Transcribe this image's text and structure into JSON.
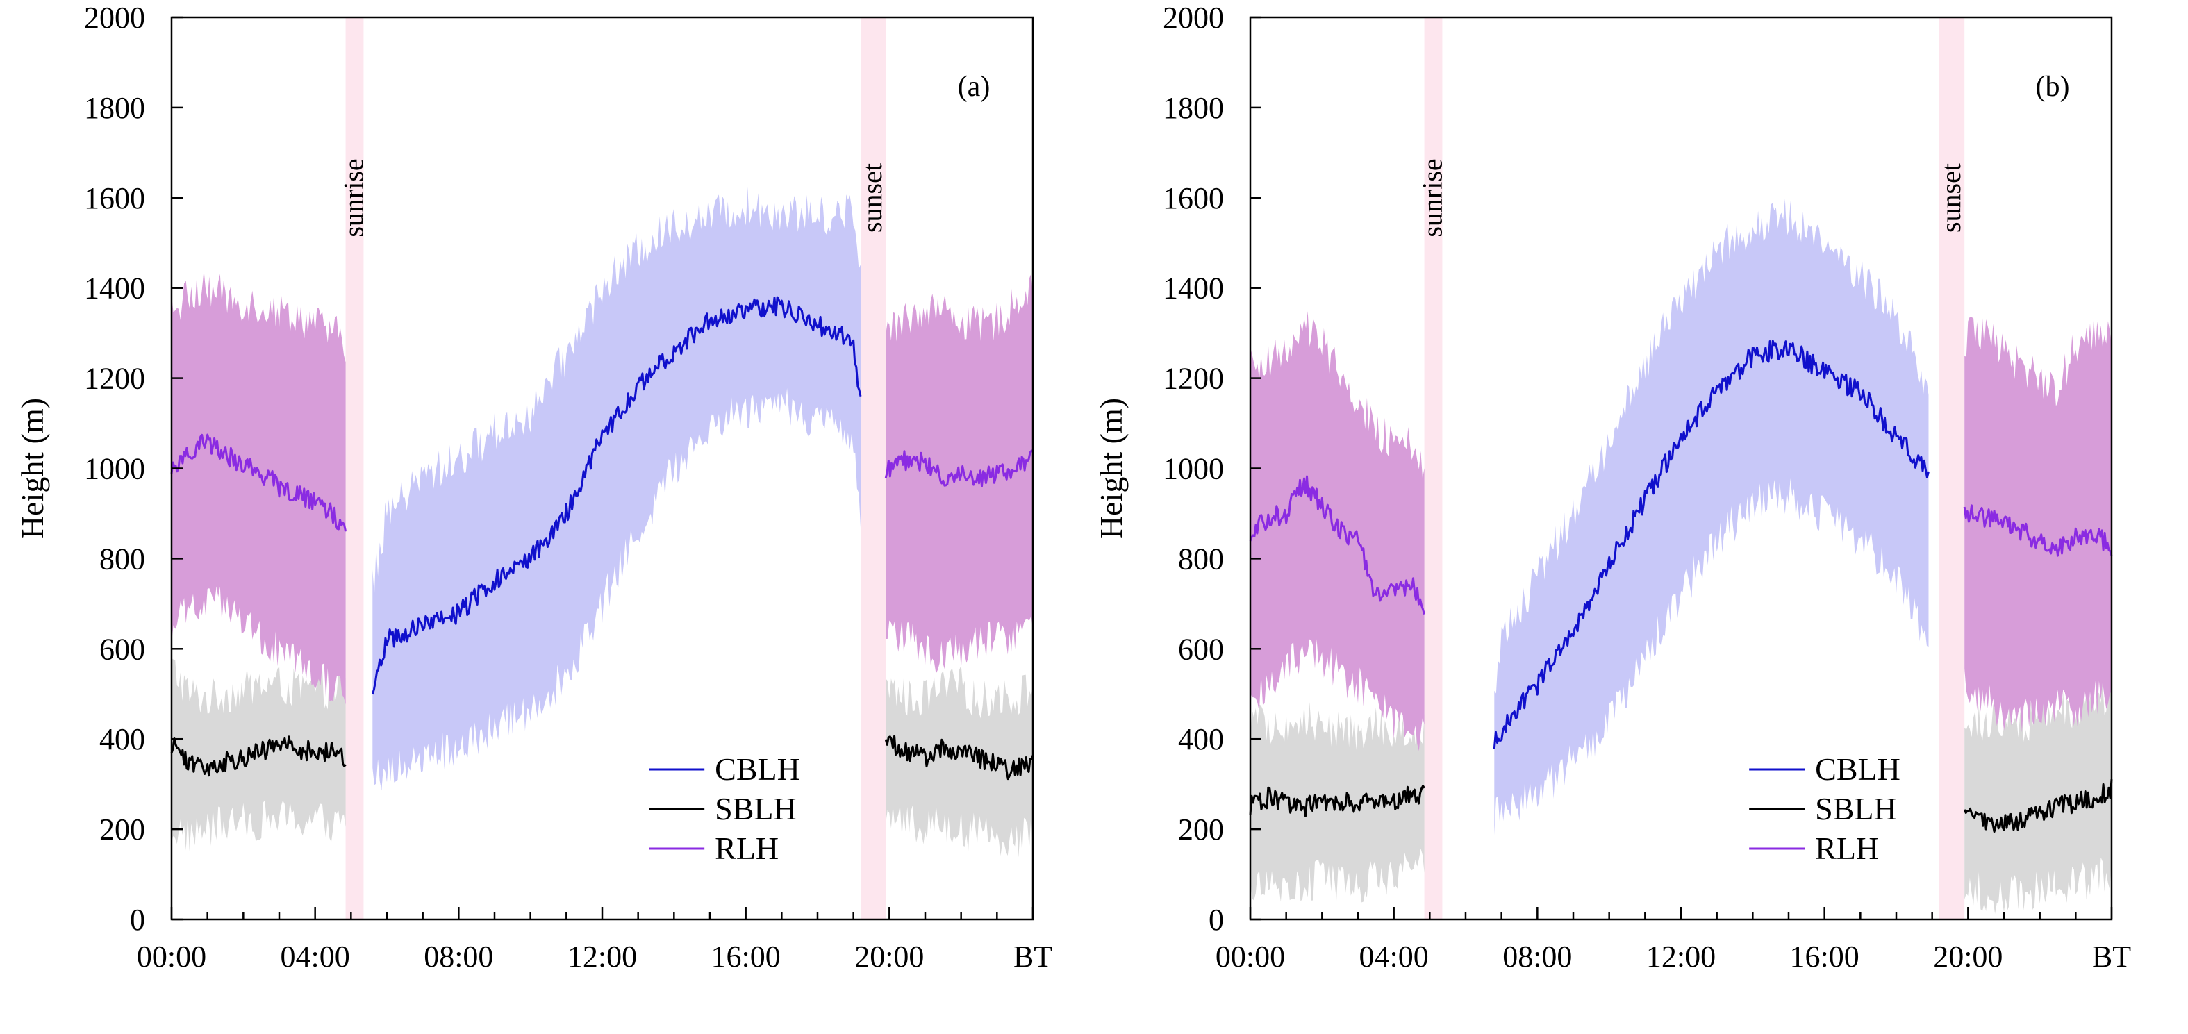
{
  "chart_data": [
    {
      "type": "line",
      "panel_label": "(a)",
      "ylabel": "Height (m)",
      "ylim": [
        0,
        2000
      ],
      "yticks": [
        "0",
        "200",
        "400",
        "600",
        "800",
        "1000",
        "1200",
        "1400",
        "1600",
        "1800",
        "2000"
      ],
      "xlim_hours": [
        0,
        24
      ],
      "xtick_labels": [
        "00:00",
        "04:00",
        "08:00",
        "12:00",
        "16:00",
        "20:00",
        "BT"
      ],
      "sunrise_band_hours": [
        4.85,
        5.35
      ],
      "sunset_band_hours": [
        19.2,
        19.9
      ],
      "sunrise_label": "sunrise",
      "sunset_label": "sunset",
      "legend": [
        "CBLH",
        "SBLH",
        "RLH"
      ],
      "colors": {
        "CBLH": "#1010cc",
        "SBLH": "#000000",
        "RLH": "#8a2be2",
        "CBLH_band": "#c8c8f8",
        "SBLH_band": "#d9d9d9",
        "RLH_band": "#d79dd9",
        "event_band": "#fde6ee"
      },
      "series": [
        {
          "name": "CBLH",
          "hours": [
            5.6,
            6,
            7,
            8,
            9,
            10,
            11,
            12,
            13,
            14,
            15,
            16,
            17,
            18,
            19,
            19.2
          ],
          "values": [
            520,
            620,
            650,
            680,
            750,
            800,
            900,
            1070,
            1180,
            1260,
            1330,
            1350,
            1360,
            1320,
            1280,
            1150
          ],
          "upper": [
            740,
            900,
            980,
            1020,
            1080,
            1120,
            1250,
            1400,
            1480,
            1540,
            1560,
            1580,
            1570,
            1560,
            1570,
            1450
          ],
          "lower": [
            300,
            330,
            360,
            380,
            420,
            470,
            540,
            700,
            860,
            1000,
            1100,
            1130,
            1150,
            1100,
            1080,
            850
          ]
        },
        {
          "name": "SBLH",
          "segments": [
            {
              "hours": [
                0,
                0.5,
                1,
                1.5,
                2,
                2.5,
                3,
                3.5,
                4,
                4.5,
                4.85
              ],
              "values": [
                390,
                350,
                340,
                350,
                360,
                370,
                390,
                380,
                370,
                370,
                360
              ],
              "upper": [
                560,
                500,
                490,
                500,
                510,
                520,
                520,
                510,
                510,
                510,
                510
              ],
              "lower": [
                200,
                190,
                200,
                210,
                215,
                220,
                225,
                220,
                220,
                210,
                210
              ]
            },
            {
              "hours": [
                19.9,
                20.5,
                21,
                21.5,
                22,
                22.5,
                23,
                23.5,
                24
              ],
              "values": [
                400,
                370,
                360,
                380,
                370,
                360,
                340,
                330,
                350
              ],
              "upper": [
                520,
                490,
                490,
                510,
                520,
                480,
                500,
                490,
                520
              ],
              "lower": [
                230,
                220,
                210,
                220,
                200,
                190,
                185,
                180,
                190
              ]
            }
          ]
        },
        {
          "name": "RLH",
          "segments": [
            {
              "hours": [
                0,
                0.5,
                1,
                1.5,
                2,
                2.5,
                3,
                3.5,
                4,
                4.5,
                4.85
              ],
              "values": [
                1000,
                1040,
                1060,
                1030,
                1010,
                990,
                960,
                940,
                930,
                900,
                850
              ],
              "upper": [
                1350,
                1380,
                1400,
                1380,
                1370,
                1360,
                1350,
                1340,
                1320,
                1300,
                1280
              ],
              "lower": [
                650,
                680,
                700,
                690,
                660,
                620,
                590,
                560,
                540,
                520,
                490
              ]
            },
            {
              "hours": [
                19.9,
                20.5,
                21,
                21.5,
                22,
                22.5,
                23,
                23.5,
                24
              ],
              "values": [
                1000,
                1020,
                1010,
                980,
                990,
                980,
                990,
                1000,
                1020
              ],
              "upper": [
                1300,
                1330,
                1360,
                1350,
                1330,
                1310,
                1330,
                1360,
                1420
              ],
              "lower": [
                650,
                620,
                600,
                580,
                600,
                610,
                620,
                640,
                650
              ]
            }
          ]
        }
      ]
    },
    {
      "type": "line",
      "panel_label": "(b)",
      "ylabel": "Height (m)",
      "ylim": [
        0,
        2000
      ],
      "yticks": [
        "0",
        "200",
        "400",
        "600",
        "800",
        "1000",
        "1200",
        "1400",
        "1600",
        "1800",
        "2000"
      ],
      "xlim_hours": [
        0,
        24
      ],
      "xtick_labels": [
        "00:00",
        "04:00",
        "08:00",
        "12:00",
        "16:00",
        "20:00",
        "BT"
      ],
      "sunrise_band_hours": [
        4.85,
        5.35
      ],
      "sunset_band_hours": [
        19.2,
        19.9
      ],
      "sunrise_label": "sunrise",
      "sunset_label": "sunset",
      "legend": [
        "CBLH",
        "SBLH",
        "RLH"
      ],
      "colors": {
        "CBLH": "#1010cc",
        "SBLH": "#000000",
        "RLH": "#8a2be2",
        "CBLH_band": "#c8c8f8",
        "SBLH_band": "#d9d9d9",
        "RLH_band": "#d79dd9",
        "event_band": "#fde6ee"
      },
      "series": [
        {
          "name": "CBLH",
          "hours": [
            6.8,
            7,
            8,
            9,
            10,
            11,
            12,
            13,
            14,
            15,
            16,
            17,
            18,
            18.9
          ],
          "values": [
            390,
            420,
            520,
            640,
            790,
            930,
            1070,
            1170,
            1250,
            1270,
            1210,
            1170,
            1070,
            990
          ],
          "upper": [
            520,
            620,
            760,
            900,
            1060,
            1230,
            1380,
            1480,
            1540,
            1560,
            1500,
            1430,
            1330,
            1180
          ],
          "lower": [
            220,
            240,
            280,
            350,
            440,
            580,
            720,
            840,
            920,
            940,
            900,
            840,
            760,
            620
          ]
        },
        {
          "name": "SBLH",
          "segments": [
            {
              "hours": [
                0,
                0.5,
                1,
                1.5,
                2,
                2.5,
                3,
                3.5,
                4,
                4.5,
                4.85
              ],
              "values": [
                250,
                270,
                260,
                250,
                260,
                265,
                255,
                270,
                260,
                280,
                275
              ],
              "upper": [
                440,
                430,
                420,
                440,
                430,
                420,
                410,
                430,
                420,
                420,
                430
              ],
              "lower": [
                60,
                80,
                70,
                80,
                90,
                80,
                70,
                90,
                100,
                110,
                120
              ]
            },
            {
              "hours": [
                19.9,
                20.5,
                21,
                21.5,
                22,
                22.5,
                23,
                23.5,
                24
              ],
              "values": [
                240,
                210,
                220,
                215,
                240,
                250,
                260,
                270,
                290
              ],
              "upper": [
                420,
                440,
                450,
                430,
                450,
                460,
                470,
                480,
                500
              ],
              "lower": [
                80,
                60,
                50,
                60,
                70,
                80,
                80,
                90,
                100
              ]
            }
          ]
        },
        {
          "name": "RLH",
          "segments": [
            {
              "hours": [
                0,
                0.5,
                1,
                1.5,
                2,
                2.5,
                3,
                3.5,
                4,
                4.5,
                4.85
              ],
              "values": [
                860,
                890,
                900,
                970,
                920,
                860,
                840,
                720,
                730,
                740,
                690
              ],
              "upper": [
                1230,
                1240,
                1250,
                1330,
                1280,
                1200,
                1150,
                1080,
                1060,
                1050,
                1000
              ],
              "lower": [
                490,
                520,
                560,
                600,
                580,
                540,
                520,
                470,
                440,
                420,
                400
              ]
            },
            {
              "hours": [
                19.9,
                20.5,
                21,
                21.5,
                22,
                22.5,
                23,
                23.5,
                24
              ],
              "values": [
                900,
                890,
                880,
                860,
                840,
                820,
                850,
                860,
                820
              ],
              "upper": [
                1290,
                1300,
                1250,
                1220,
                1200,
                1180,
                1270,
                1290,
                1280
              ],
              "lower": [
                520,
                480,
                460,
                450,
                460,
                480,
                470,
                490,
                500
              ]
            }
          ]
        }
      ]
    }
  ]
}
